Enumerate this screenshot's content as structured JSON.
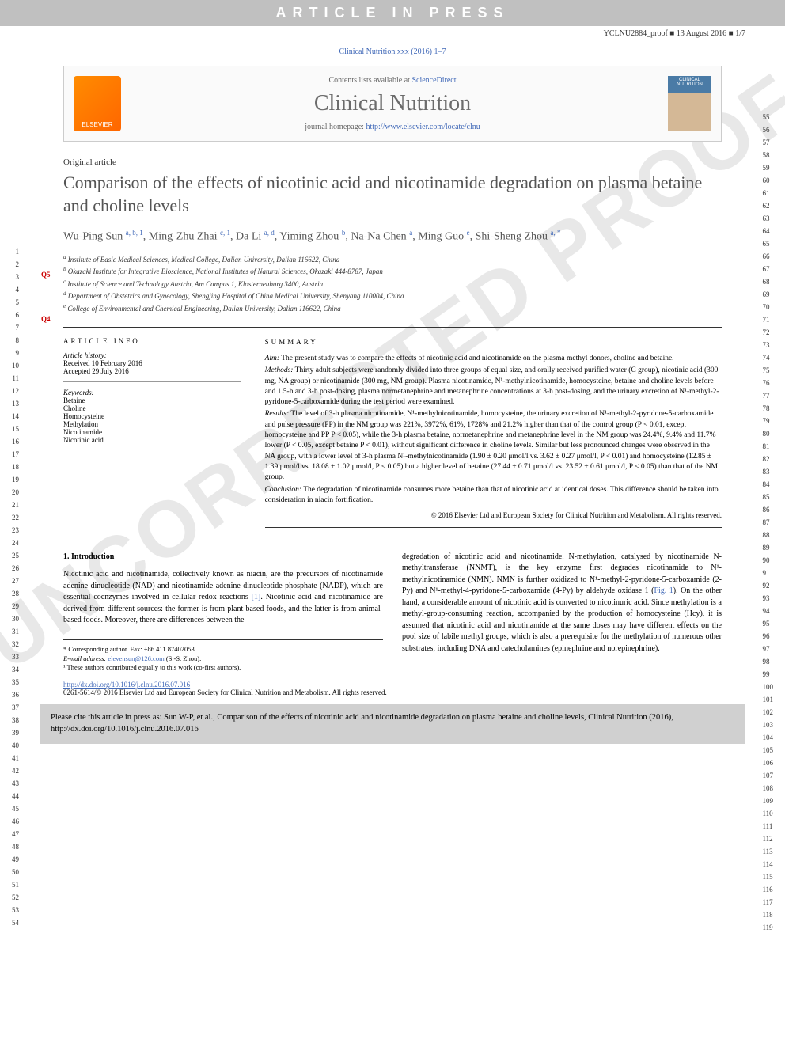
{
  "proof": {
    "banner": "ARTICLE IN PRESS",
    "id": "YCLNU2884_proof",
    "date": "13 August 2016",
    "pages": "1/7"
  },
  "citation_header": "Clinical Nutrition xxx (2016) 1–7",
  "journal_box": {
    "contents_prefix": "Contents lists available at ",
    "contents_link": "ScienceDirect",
    "journal_name": "Clinical Nutrition",
    "homepage_prefix": "journal homepage: ",
    "homepage_url": "http://www.elsevier.com/locate/clnu",
    "publisher": "ELSEVIER",
    "cover_text": "CLINICAL NUTRITION"
  },
  "article_type": "Original article",
  "title": "Comparison of the effects of nicotinic acid and nicotinamide degradation on plasma betaine and choline levels",
  "queries": {
    "q4": "Q4",
    "q5": "Q5"
  },
  "authors_html": "Wu-Ping Sun <sup>a, b, 1</sup>, Ming-Zhu Zhai <sup>c, 1</sup>, Da Li <sup>a, d</sup>, Yiming Zhou <sup>b</sup>, Na-Na Chen <sup>a</sup>, Ming Guo <sup>e</sup>, Shi-Sheng Zhou <sup>a, <span class='corresponding'>*</span></sup>",
  "affiliations": {
    "a": "Institute of Basic Medical Sciences, Medical College, Dalian University, Dalian 116622, China",
    "b": "Okazaki Institute for Integrative Bioscience, National Institutes of Natural Sciences, Okazaki 444-8787, Japan",
    "c": "Institute of Science and Technology Austria, Am Campus 1, Klosterneuburg 3400, Austria",
    "d": "Department of Obstetrics and Gynecology, Shengjing Hospital of China Medical University, Shenyang 110004, China",
    "e": "College of Environmental and Chemical Engineering, Dalian University, Dalian 116622, China"
  },
  "article_info": {
    "heading": "ARTICLE INFO",
    "history_label": "Article history:",
    "received": "Received 10 February 2016",
    "accepted": "Accepted 29 July 2016",
    "keywords_label": "Keywords:",
    "keywords": [
      "Betaine",
      "Choline",
      "Homocysteine",
      "Methylation",
      "Nicotinamide",
      "Nicotinic acid"
    ]
  },
  "summary": {
    "heading": "SUMMARY",
    "aim_label": "Aim:",
    "aim": "The present study was to compare the effects of nicotinic acid and nicotinamide on the plasma methyl donors, choline and betaine.",
    "methods_label": "Methods:",
    "methods": "Thirty adult subjects were randomly divided into three groups of equal size, and orally received purified water (C group), nicotinic acid (300 mg, NA group) or nicotinamide (300 mg, NM group). Plasma nicotinamide, N¹-methylnicotinamide, homocysteine, betaine and choline levels before and 1.5-h and 3-h post-dosing, plasma normetanephrine and metanephrine concentrations at 3-h post-dosing, and the urinary excretion of N¹-methyl-2-pyridone-5-carboxamide during the test period were examined.",
    "results_label": "Results:",
    "results": "The level of 3-h plasma nicotinamide, N¹-methylnicotinamide, homocysteine, the urinary excretion of N¹-methyl-2-pyridone-5-carboxamide and pulse pressure (PP) in the NM group was 221%, 3972%, 61%, 1728% and 21.2% higher than that of the control group (P < 0.01, except homocysteine and PP P < 0.05), while the 3-h plasma betaine, normetanephrine and metanephrine level in the NM group was 24.4%, 9.4% and 11.7% lower (P < 0.05, except betaine P < 0.01), without significant difference in choline levels. Similar but less pronounced changes were observed in the NA group, with a lower level of 3-h plasma N¹-methylnicotinamide (1.90 ± 0.20 μmol/l vs. 3.62 ± 0.27 μmol/l, P < 0.01) and homocysteine (12.85 ± 1.39 μmol/l vs. 18.08 ± 1.02 μmol/l, P < 0.05) but a higher level of betaine (27.44 ± 0.71 μmol/l vs. 23.52 ± 0.61 μmol/l, P < 0.05) than that of the NM group.",
    "conclusion_label": "Conclusion:",
    "conclusion": "The degradation of nicotinamide consumes more betaine than that of nicotinic acid at identical doses. This difference should be taken into consideration in niacin fortification.",
    "copyright": "© 2016 Elsevier Ltd and European Society for Clinical Nutrition and Metabolism. All rights reserved."
  },
  "body": {
    "section_heading": "1. Introduction",
    "col1": "Nicotinic acid and nicotinamide, collectively known as niacin, are the precursors of nicotinamide adenine dinucleotide (NAD) and nicotinamide adenine dinucleotide phosphate (NADP), which are essential coenzymes involved in cellular redox reactions [1]. Nicotinic acid and nicotinamide are derived from different sources: the former is from plant-based foods, and the latter is from animal-based foods. Moreover, there are differences between the",
    "col2": "degradation of nicotinic acid and nicotinamide. N-methylation, catalysed by nicotinamide N-methyltransferase (NNMT), is the key enzyme first degrades nicotinamide to N¹-methylnicotinamide (NMN). NMN is further oxidized to N¹-methyl-2-pyridone-5-carboxamide (2-Py) and N¹-methyl-4-pyridone-5-carboxamide (4-Py) by aldehyde oxidase 1 (Fig. 1). On the other hand, a considerable amount of nicotinic acid is converted to nicotinuric acid. Since methylation is a methyl-group-consuming reaction, accompanied by the production of homocysteine (Hcy), it is assumed that nicotinic acid and nicotinamide at the same doses may have different effects on the pool size of labile methyl groups, which is also a prerequisite for the methylation of numerous other substrates, including DNA and catecholamines (epinephrine and norepinephrine)."
  },
  "footnotes": {
    "corr": "* Corresponding author. Fax: +86 411 87402053.",
    "email_label": "E-mail address:",
    "email": "elevensun@126.com",
    "email_suffix": "(S.-S. Zhou).",
    "contrib": "¹ These authors contributed equally to this work (co-first authors)."
  },
  "doi": {
    "url": "http://dx.doi.org/10.1016/j.clnu.2016.07.016",
    "issn_line": "0261-5614/© 2016 Elsevier Ltd and European Society for Clinical Nutrition and Metabolism. All rights reserved."
  },
  "cite_box": "Please cite this article in press as: Sun W-P, et al., Comparison of the effects of nicotinic acid and nicotinamide degradation on plasma betaine and choline levels, Clinical Nutrition (2016), http://dx.doi.org/10.1016/j.clnu.2016.07.016",
  "watermark": "UNCORRECTED PROOF",
  "line_numbers": {
    "left_start": 1,
    "left_end": 54,
    "right_start": 55,
    "right_end": 119
  },
  "colors": {
    "banner_bg": "#c0c0c0",
    "link": "#4169b8",
    "title": "#555555",
    "query": "#cc0000",
    "watermark": "#e8e8e8",
    "citebox_bg": "#d0d0d0",
    "elsevier": "#ff8c00"
  }
}
